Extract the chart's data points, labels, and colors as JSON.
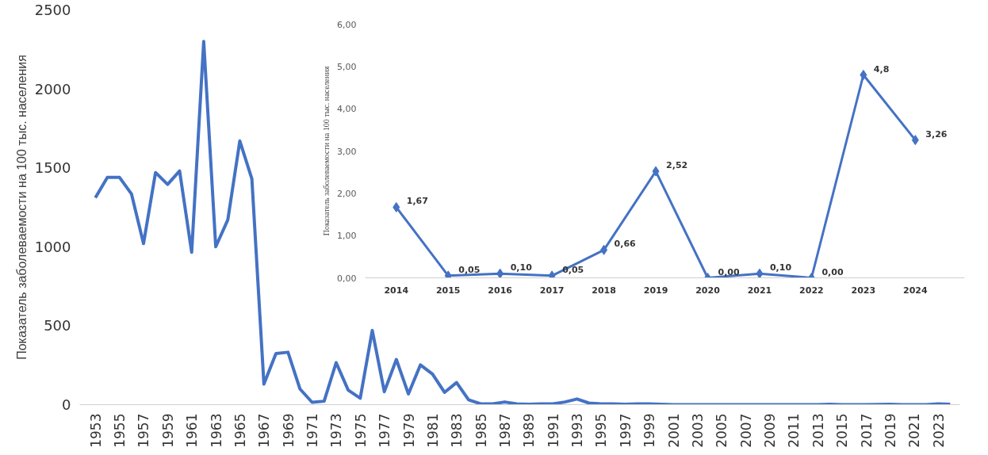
{
  "chart_data": [
    {
      "type": "line",
      "ylabel": "Показатель заболеваемости на 100 тыс. населения",
      "color": "#4472c4",
      "x": [
        1953,
        1954,
        1955,
        1956,
        1957,
        1958,
        1959,
        1960,
        1961,
        1962,
        1963,
        1964,
        1965,
        1966,
        1967,
        1968,
        1969,
        1970,
        1971,
        1972,
        1973,
        1974,
        1975,
        1976,
        1977,
        1978,
        1979,
        1980,
        1981,
        1982,
        1983,
        1984,
        1985,
        1986,
        1987,
        1988,
        1989,
        1990,
        1991,
        1992,
        1993,
        1994,
        1995,
        1996,
        1997,
        1998,
        1999,
        2000,
        2001,
        2002,
        2003,
        2004,
        2005,
        2006,
        2007,
        2008,
        2009,
        2010,
        2011,
        2012,
        2013,
        2014,
        2015,
        2016,
        2017,
        2018,
        2019,
        2020,
        2021,
        2022,
        2023,
        2024
      ],
      "values": [
        1310,
        1440,
        1440,
        1335,
        1020,
        1470,
        1395,
        1480,
        965,
        2300,
        1000,
        1170,
        1670,
        1430,
        130,
        324,
        332,
        99,
        15,
        22,
        266,
        92,
        41,
        470,
        82,
        286,
        68,
        252,
        194,
        78,
        140,
        31,
        5,
        5,
        17,
        5,
        2,
        5,
        5,
        17,
        36,
        10,
        5,
        5,
        2,
        5,
        5,
        2,
        0,
        0,
        0,
        0,
        0,
        0,
        0,
        0,
        0,
        0,
        0,
        0,
        0,
        2,
        0,
        0,
        0,
        1,
        3,
        0,
        0,
        0,
        5,
        3
      ],
      "xlim": [
        1951.7,
        2024.8
      ],
      "ylim": [
        0,
        2500
      ],
      "yticks": [
        0,
        500,
        1000,
        1500,
        2000,
        2500
      ],
      "xticks": [
        1953,
        1955,
        1957,
        1959,
        1961,
        1963,
        1965,
        1967,
        1969,
        1971,
        1973,
        1975,
        1977,
        1979,
        1981,
        1983,
        1985,
        1987,
        1989,
        1991,
        1993,
        1995,
        1997,
        1999,
        2001,
        2003,
        2005,
        2007,
        2009,
        2011,
        2013,
        2015,
        2017,
        2019,
        2021,
        2023
      ],
      "grid": false
    },
    {
      "type": "line",
      "ylabel": "Показатель заболеваемости на 100 тыс. населения",
      "color": "#4472c4",
      "marker": "diamond",
      "categories": [
        "2014",
        "2015",
        "2016",
        "2017",
        "2018",
        "2019",
        "2020",
        "2021",
        "2022",
        "2023",
        "2024"
      ],
      "values": [
        1.67,
        0.05,
        0.1,
        0.05,
        0.66,
        2.52,
        0,
        0.1,
        0,
        4.8,
        3.26
      ],
      "value_labels": [
        "1,67",
        "0,05",
        "0,10",
        "0,05",
        "0,66",
        "2,52",
        "0,00",
        "0,10",
        "0,00",
        "4,8",
        "3,26"
      ],
      "ylim": [
        0,
        6
      ],
      "yticks": [
        {
          "value": 0,
          "label": "0,00"
        },
        {
          "value": 1,
          "label": "1,00"
        },
        {
          "value": 2,
          "label": "2,00"
        },
        {
          "value": 3,
          "label": "3,00"
        },
        {
          "value": 4,
          "label": "4,00"
        },
        {
          "value": 5,
          "label": "5,00"
        },
        {
          "value": 6,
          "label": "6,00"
        }
      ],
      "grid": false
    }
  ]
}
